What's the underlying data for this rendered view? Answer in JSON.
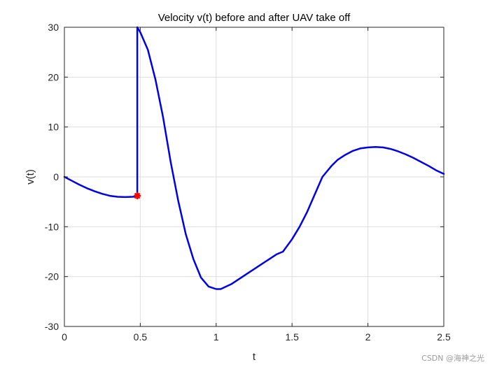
{
  "chart_data": {
    "type": "line",
    "title": "Velocity v(t) before and after UAV take off",
    "xlabel": "t",
    "ylabel": "v(t)",
    "xlim": [
      0,
      2.5
    ],
    "ylim": [
      -30,
      30
    ],
    "xticks": [
      0,
      0.5,
      1,
      1.5,
      2,
      2.5
    ],
    "xtick_labels": [
      "0",
      "0.5",
      "1",
      "1.5",
      "2",
      "2.5"
    ],
    "yticks": [
      -30,
      -20,
      -10,
      0,
      10,
      20,
      30
    ],
    "ytick_labels": [
      "-30",
      "-20",
      "-10",
      "0",
      "10",
      "20",
      "30"
    ],
    "grid": true,
    "colors": {
      "line": "#0000e6",
      "marker": "#ff0000",
      "grid": "#dedede",
      "axes": "#262626"
    },
    "series": [
      {
        "x": [
          0,
          0.05,
          0.1,
          0.15,
          0.2,
          0.25,
          0.3,
          0.35,
          0.4,
          0.45,
          0.48,
          0.48,
          0.5,
          0.55,
          0.6,
          0.65,
          0.7,
          0.75,
          0.8,
          0.85,
          0.9,
          0.95,
          1.0,
          1.03,
          1.1,
          1.2,
          1.3,
          1.4,
          1.44,
          1.5,
          1.55,
          1.6,
          1.65,
          1.7,
          1.76,
          1.8,
          1.85,
          1.9,
          1.95,
          2.0,
          2.05,
          2.1,
          2.15,
          2.2,
          2.25,
          2.3,
          2.35,
          2.4,
          2.45,
          2.5
        ],
        "y": [
          0,
          -0.8,
          -1.6,
          -2.3,
          -2.9,
          -3.4,
          -3.8,
          -4.0,
          -4.05,
          -4.0,
          -3.9,
          30,
          29,
          25.5,
          19.5,
          12,
          3,
          -4.8,
          -11.5,
          -16.5,
          -20.2,
          -22.0,
          -22.5,
          -22.5,
          -21.5,
          -19.5,
          -17.5,
          -15.5,
          -15,
          -12.5,
          -10,
          -7,
          -3.5,
          0,
          2.2,
          3.4,
          4.4,
          5.2,
          5.7,
          5.9,
          6.0,
          5.9,
          5.6,
          5.1,
          4.5,
          3.8,
          3.0,
          2.2,
          1.3,
          0.6
        ]
      }
    ],
    "markers": [
      {
        "x": 0.48,
        "y": -3.8
      }
    ]
  },
  "watermark": "CSDN @海神之光"
}
